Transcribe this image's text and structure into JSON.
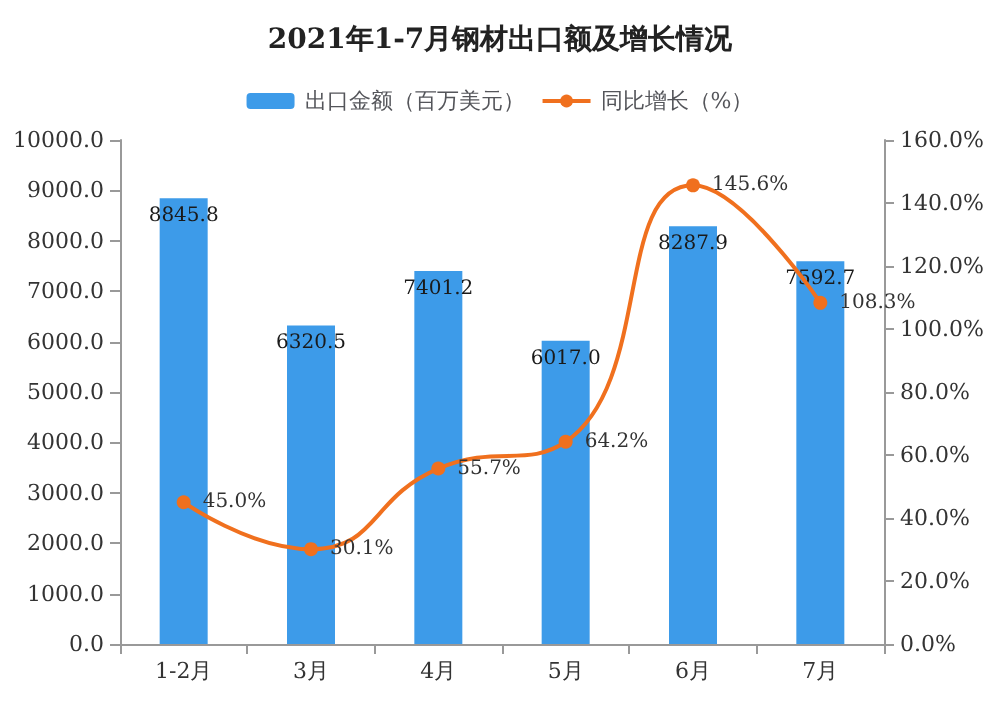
{
  "chart_data": {
    "type": "bar",
    "title": "2021年1-7月钢材出口额及增长情况",
    "categories": [
      "1-2月",
      "3月",
      "4月",
      "5月",
      "6月",
      "7月"
    ],
    "series": [
      {
        "name": "出口金额（百万美元）",
        "color": "#3d9be9",
        "values": [
          8845.8,
          6320.5,
          7401.2,
          6017.0,
          8287.9,
          7592.7
        ],
        "value_labels": [
          "8845.8",
          "6320.5",
          "7401.2",
          "6017.0",
          "8287.9",
          "7592.7"
        ]
      },
      {
        "name": "同比增长（%）",
        "type": "line",
        "axis": "y2",
        "color": "#f0701e",
        "values": [
          45.0,
          30.1,
          55.7,
          64.2,
          145.6,
          108.3
        ],
        "value_labels": [
          "45.0%",
          "30.1%",
          "55.7%",
          "64.2%",
          "145.6%",
          "108.3%"
        ]
      }
    ],
    "ylim": [
      0,
      10000
    ],
    "yticks": [
      {
        "value": 0,
        "label": "0.0"
      },
      {
        "value": 1000,
        "label": "1000.0"
      },
      {
        "value": 2000,
        "label": "2000.0"
      },
      {
        "value": 3000,
        "label": "3000.0"
      },
      {
        "value": 4000,
        "label": "4000.0"
      },
      {
        "value": 5000,
        "label": "5000.0"
      },
      {
        "value": 6000,
        "label": "6000.0"
      },
      {
        "value": 7000,
        "label": "7000.0"
      },
      {
        "value": 8000,
        "label": "8000.0"
      },
      {
        "value": 9000,
        "label": "9000.0"
      },
      {
        "value": 10000,
        "label": "10000.0"
      }
    ],
    "y2lim": [
      0,
      160
    ],
    "y2ticks": [
      {
        "value": 0,
        "label": "0.0%"
      },
      {
        "value": 20,
        "label": "20.0%"
      },
      {
        "value": 40,
        "label": "40.0%"
      },
      {
        "value": 60,
        "label": "60.0%"
      },
      {
        "value": 80,
        "label": "80.0%"
      },
      {
        "value": 100,
        "label": "100.0%"
      },
      {
        "value": 120,
        "label": "120.0%"
      },
      {
        "value": 140,
        "label": "140.0%"
      },
      {
        "value": 160,
        "label": "160.0%"
      }
    ],
    "legend": "top",
    "marker": "circle",
    "grid": false
  }
}
